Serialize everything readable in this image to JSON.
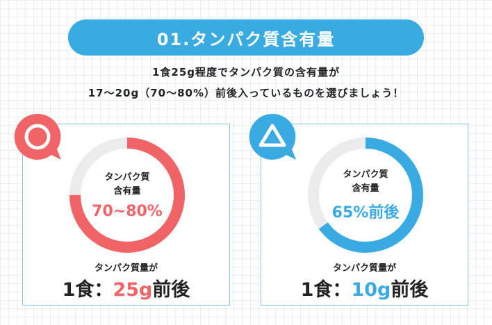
{
  "header": {
    "title": "01.タンパク質含有量"
  },
  "intro": {
    "line1": "1食25g程度でタンパク質の含有量が",
    "line2": "17〜20g（70〜80%）前後入っているものを選びましょう！"
  },
  "cards": [
    {
      "badge_icon": "circle-icon",
      "badge_color": "#f06468",
      "donut_label_1": "タンパク質",
      "donut_label_2": "含有量",
      "donut_value": "70~80%",
      "donut_fraction": 0.75,
      "ring_color": "#f06468",
      "serving_label": "タンパク質量が",
      "serving_prefix": "1食：",
      "serving_amount": "25g",
      "serving_suffix": "前後"
    },
    {
      "badge_icon": "triangle-icon",
      "badge_color": "#3aabe2",
      "donut_label_1": "タンパク質",
      "donut_label_2": "含有量",
      "donut_value": "65%前後",
      "donut_fraction": 0.65,
      "ring_color": "#3aabe2",
      "serving_label": "タンパク質量が",
      "serving_prefix": "1食：",
      "serving_amount": "10g",
      "serving_suffix": "前後"
    }
  ]
}
